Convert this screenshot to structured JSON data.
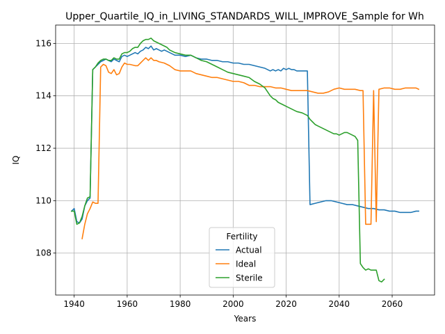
{
  "chart_data": {
    "type": "line",
    "title": "Upper_Quartile_IQ_in_LIVING_STANDARDS_WILL_IMPROVE_Sample for Wh",
    "xlabel": "Years",
    "ylabel": "IQ",
    "xlim": [
      1933,
      2076
    ],
    "ylim": [
      106.4,
      116.7
    ],
    "xticks": [
      1940,
      1960,
      1980,
      2000,
      2020,
      2040,
      2060
    ],
    "yticks": [
      108,
      110,
      112,
      114,
      116
    ],
    "grid": true,
    "legend": {
      "title": "Fertility",
      "placement": "lower-center"
    },
    "series": [
      {
        "name": "Actual",
        "color": "#1f77b4",
        "points": [
          [
            1939,
            109.6
          ],
          [
            1940,
            109.7
          ],
          [
            1941,
            109.2
          ],
          [
            1942,
            109.15
          ],
          [
            1943,
            109.3
          ],
          [
            1944,
            109.8
          ],
          [
            1945,
            110.0
          ],
          [
            1946,
            110.1
          ],
          [
            1947,
            115.0
          ],
          [
            1948,
            115.1
          ],
          [
            1949,
            115.2
          ],
          [
            1950,
            115.3
          ],
          [
            1951,
            115.35
          ],
          [
            1952,
            115.4
          ],
          [
            1953,
            115.35
          ],
          [
            1954,
            115.3
          ],
          [
            1955,
            115.4
          ],
          [
            1956,
            115.35
          ],
          [
            1957,
            115.3
          ],
          [
            1958,
            115.5
          ],
          [
            1959,
            115.55
          ],
          [
            1960,
            115.5
          ],
          [
            1961,
            115.55
          ],
          [
            1962,
            115.6
          ],
          [
            1963,
            115.65
          ],
          [
            1964,
            115.6
          ],
          [
            1965,
            115.7
          ],
          [
            1966,
            115.75
          ],
          [
            1967,
            115.85
          ],
          [
            1968,
            115.8
          ],
          [
            1969,
            115.9
          ],
          [
            1970,
            115.75
          ],
          [
            1971,
            115.8
          ],
          [
            1972,
            115.75
          ],
          [
            1973,
            115.7
          ],
          [
            1974,
            115.75
          ],
          [
            1975,
            115.7
          ],
          [
            1976,
            115.65
          ],
          [
            1977,
            115.6
          ],
          [
            1978,
            115.55
          ],
          [
            1980,
            115.55
          ],
          [
            1982,
            115.5
          ],
          [
            1984,
            115.55
          ],
          [
            1986,
            115.45
          ],
          [
            1988,
            115.4
          ],
          [
            1990,
            115.4
          ],
          [
            1992,
            115.35
          ],
          [
            1994,
            115.35
          ],
          [
            1996,
            115.3
          ],
          [
            1998,
            115.3
          ],
          [
            2000,
            115.25
          ],
          [
            2002,
            115.25
          ],
          [
            2004,
            115.2
          ],
          [
            2006,
            115.2
          ],
          [
            2008,
            115.15
          ],
          [
            2010,
            115.1
          ],
          [
            2012,
            115.05
          ],
          [
            2013,
            115.0
          ],
          [
            2014,
            114.95
          ],
          [
            2015,
            115.0
          ],
          [
            2016,
            114.95
          ],
          [
            2017,
            115.0
          ],
          [
            2018,
            114.95
          ],
          [
            2019,
            115.05
          ],
          [
            2020,
            115.0
          ],
          [
            2021,
            115.05
          ],
          [
            2022,
            115.0
          ],
          [
            2023,
            115.0
          ],
          [
            2024,
            114.95
          ],
          [
            2026,
            114.95
          ],
          [
            2028,
            114.95
          ],
          [
            2029,
            109.85
          ],
          [
            2031,
            109.9
          ],
          [
            2033,
            109.95
          ],
          [
            2035,
            110.0
          ],
          [
            2037,
            110.0
          ],
          [
            2039,
            109.95
          ],
          [
            2041,
            109.9
          ],
          [
            2043,
            109.85
          ],
          [
            2045,
            109.85
          ],
          [
            2047,
            109.8
          ],
          [
            2049,
            109.75
          ],
          [
            2051,
            109.7
          ],
          [
            2053,
            109.7
          ],
          [
            2055,
            109.65
          ],
          [
            2057,
            109.65
          ],
          [
            2059,
            109.6
          ],
          [
            2061,
            109.6
          ],
          [
            2063,
            109.55
          ],
          [
            2065,
            109.55
          ],
          [
            2067,
            109.55
          ],
          [
            2069,
            109.6
          ],
          [
            2070,
            109.6
          ]
        ]
      },
      {
        "name": "Ideal",
        "color": "#ff7f0e",
        "points": [
          [
            1943,
            108.55
          ],
          [
            1944,
            109.1
          ],
          [
            1945,
            109.5
          ],
          [
            1946,
            109.7
          ],
          [
            1947,
            109.95
          ],
          [
            1948,
            109.9
          ],
          [
            1949,
            109.9
          ],
          [
            1950,
            115.1
          ],
          [
            1951,
            115.2
          ],
          [
            1952,
            115.15
          ],
          [
            1953,
            114.9
          ],
          [
            1954,
            114.85
          ],
          [
            1955,
            115.0
          ],
          [
            1956,
            114.8
          ],
          [
            1957,
            114.85
          ],
          [
            1958,
            115.1
          ],
          [
            1959,
            115.25
          ],
          [
            1960,
            115.2
          ],
          [
            1961,
            115.2
          ],
          [
            1963,
            115.15
          ],
          [
            1964,
            115.15
          ],
          [
            1965,
            115.25
          ],
          [
            1966,
            115.35
          ],
          [
            1967,
            115.45
          ],
          [
            1968,
            115.35
          ],
          [
            1969,
            115.45
          ],
          [
            1970,
            115.35
          ],
          [
            1971,
            115.35
          ],
          [
            1972,
            115.3
          ],
          [
            1974,
            115.25
          ],
          [
            1976,
            115.15
          ],
          [
            1978,
            115.0
          ],
          [
            1980,
            114.95
          ],
          [
            1982,
            114.95
          ],
          [
            1983,
            114.95
          ],
          [
            1984,
            114.95
          ],
          [
            1986,
            114.85
          ],
          [
            1988,
            114.8
          ],
          [
            1990,
            114.75
          ],
          [
            1992,
            114.7
          ],
          [
            1994,
            114.7
          ],
          [
            1996,
            114.65
          ],
          [
            1998,
            114.6
          ],
          [
            2000,
            114.55
          ],
          [
            2002,
            114.55
          ],
          [
            2004,
            114.5
          ],
          [
            2006,
            114.4
          ],
          [
            2008,
            114.4
          ],
          [
            2010,
            114.35
          ],
          [
            2012,
            114.35
          ],
          [
            2014,
            114.35
          ],
          [
            2016,
            114.3
          ],
          [
            2018,
            114.3
          ],
          [
            2020,
            114.25
          ],
          [
            2022,
            114.2
          ],
          [
            2024,
            114.2
          ],
          [
            2026,
            114.2
          ],
          [
            2028,
            114.2
          ],
          [
            2030,
            114.15
          ],
          [
            2032,
            114.1
          ],
          [
            2034,
            114.1
          ],
          [
            2036,
            114.15
          ],
          [
            2038,
            114.25
          ],
          [
            2040,
            114.3
          ],
          [
            2042,
            114.25
          ],
          [
            2044,
            114.25
          ],
          [
            2046,
            114.25
          ],
          [
            2048,
            114.2
          ],
          [
            2049,
            114.2
          ],
          [
            2050,
            109.1
          ],
          [
            2051,
            109.1
          ],
          [
            2052,
            109.1
          ],
          [
            2053,
            114.2
          ],
          [
            2054,
            109.2
          ],
          [
            2055,
            114.25
          ],
          [
            2057,
            114.3
          ],
          [
            2059,
            114.3
          ],
          [
            2061,
            114.25
          ],
          [
            2063,
            114.25
          ],
          [
            2065,
            114.3
          ],
          [
            2067,
            114.3
          ],
          [
            2069,
            114.3
          ],
          [
            2070,
            114.25
          ]
        ]
      },
      {
        "name": "Sterile",
        "color": "#2ca02c",
        "points": [
          [
            1939,
            109.6
          ],
          [
            1940,
            109.6
          ],
          [
            1941,
            109.1
          ],
          [
            1942,
            109.15
          ],
          [
            1943,
            109.4
          ],
          [
            1944,
            109.8
          ],
          [
            1945,
            110.1
          ],
          [
            1946,
            110.15
          ],
          [
            1947,
            115.0
          ],
          [
            1948,
            115.1
          ],
          [
            1949,
            115.25
          ],
          [
            1950,
            115.35
          ],
          [
            1951,
            115.4
          ],
          [
            1952,
            115.4
          ],
          [
            1953,
            115.35
          ],
          [
            1954,
            115.35
          ],
          [
            1955,
            115.45
          ],
          [
            1956,
            115.4
          ],
          [
            1957,
            115.4
          ],
          [
            1958,
            115.6
          ],
          [
            1959,
            115.65
          ],
          [
            1960,
            115.65
          ],
          [
            1961,
            115.7
          ],
          [
            1962,
            115.8
          ],
          [
            1963,
            115.85
          ],
          [
            1964,
            115.85
          ],
          [
            1965,
            116.0
          ],
          [
            1966,
            116.1
          ],
          [
            1967,
            116.15
          ],
          [
            1968,
            116.15
          ],
          [
            1969,
            116.2
          ],
          [
            1970,
            116.1
          ],
          [
            1971,
            116.05
          ],
          [
            1972,
            116.0
          ],
          [
            1973,
            115.95
          ],
          [
            1974,
            115.9
          ],
          [
            1975,
            115.85
          ],
          [
            1976,
            115.75
          ],
          [
            1977,
            115.7
          ],
          [
            1978,
            115.65
          ],
          [
            1980,
            115.6
          ],
          [
            1982,
            115.55
          ],
          [
            1984,
            115.55
          ],
          [
            1986,
            115.45
          ],
          [
            1988,
            115.35
          ],
          [
            1990,
            115.3
          ],
          [
            1992,
            115.2
          ],
          [
            1994,
            115.1
          ],
          [
            1996,
            115.0
          ],
          [
            1998,
            114.9
          ],
          [
            2000,
            114.85
          ],
          [
            2002,
            114.8
          ],
          [
            2004,
            114.75
          ],
          [
            2006,
            114.7
          ],
          [
            2008,
            114.55
          ],
          [
            2010,
            114.45
          ],
          [
            2012,
            114.3
          ],
          [
            2013,
            114.15
          ],
          [
            2014,
            114.0
          ],
          [
            2015,
            113.9
          ],
          [
            2016,
            113.85
          ],
          [
            2017,
            113.75
          ],
          [
            2018,
            113.7
          ],
          [
            2019,
            113.65
          ],
          [
            2020,
            113.6
          ],
          [
            2021,
            113.55
          ],
          [
            2022,
            113.5
          ],
          [
            2023,
            113.45
          ],
          [
            2024,
            113.4
          ],
          [
            2026,
            113.35
          ],
          [
            2028,
            113.25
          ],
          [
            2029,
            113.1
          ],
          [
            2030,
            113.0
          ],
          [
            2031,
            112.9
          ],
          [
            2032,
            112.85
          ],
          [
            2033,
            112.8
          ],
          [
            2034,
            112.75
          ],
          [
            2035,
            112.7
          ],
          [
            2036,
            112.65
          ],
          [
            2037,
            112.6
          ],
          [
            2038,
            112.55
          ],
          [
            2039,
            112.55
          ],
          [
            2040,
            112.5
          ],
          [
            2041,
            112.55
          ],
          [
            2042,
            112.6
          ],
          [
            2043,
            112.6
          ],
          [
            2044,
            112.55
          ],
          [
            2045,
            112.5
          ],
          [
            2046,
            112.45
          ],
          [
            2047,
            112.3
          ],
          [
            2048,
            107.6
          ],
          [
            2049,
            107.45
          ],
          [
            2050,
            107.35
          ],
          [
            2051,
            107.4
          ],
          [
            2052,
            107.35
          ],
          [
            2053,
            107.35
          ],
          [
            2054,
            107.35
          ],
          [
            2055,
            106.95
          ],
          [
            2056,
            106.9
          ],
          [
            2057,
            107.0
          ]
        ]
      }
    ]
  }
}
